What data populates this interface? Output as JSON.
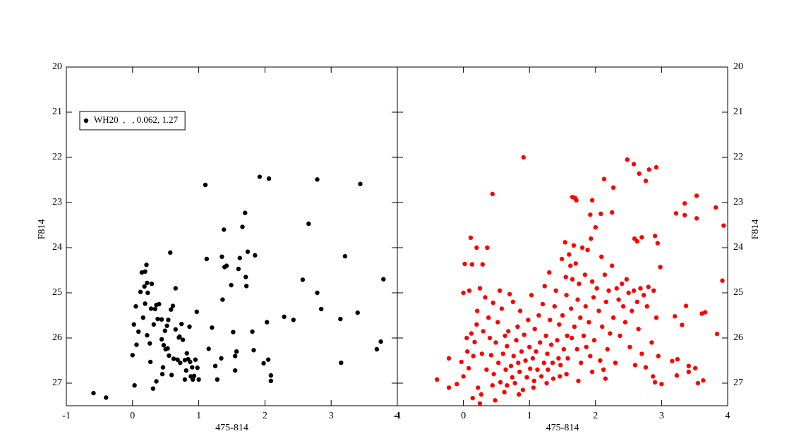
{
  "chart_data": [
    {
      "type": "scatter",
      "xlabel": "475-814",
      "ylabel": "F814",
      "xlim": [
        -1,
        4
      ],
      "ylim": [
        27.5,
        20
      ],
      "xticks": [
        -1,
        0,
        1,
        2,
        3,
        4
      ],
      "yticks": [
        20,
        21,
        22,
        23,
        24,
        25,
        26,
        27
      ],
      "yaxis_side": "left",
      "legend": "upper left",
      "series": [
        {
          "name": "WH20  ,   , 0.062, 1.27",
          "color": "#000000",
          "x": [
            -0.59,
            -0.4,
            0.0,
            0.03,
            0.02,
            0.05,
            0.06,
            0.12,
            0.14,
            0.19,
            0.09,
            0.16,
            0.18,
            0.19,
            0.21,
            0.22,
            0.23,
            0.22,
            0.26,
            0.27,
            0.28,
            0.29,
            0.32,
            0.34,
            0.36,
            0.38,
            0.4,
            0.44,
            0.44,
            0.46,
            0.47,
            0.49,
            0.52,
            0.54,
            0.53,
            0.55,
            0.57,
            0.58,
            0.59,
            0.61,
            0.62,
            0.65,
            0.65,
            0.68,
            0.7,
            0.71,
            0.74,
            0.76,
            0.79,
            0.81,
            0.82,
            0.84,
            0.87,
            0.88,
            0.9,
            0.91,
            0.93,
            0.95,
            0.98,
            1.0,
            0.97,
            1.1,
            1.12,
            1.2,
            1.15,
            1.25,
            1.28,
            1.34,
            1.36,
            1.38,
            1.39,
            1.42,
            1.35,
            1.49,
            1.52,
            1.55,
            1.55,
            1.57,
            1.6,
            1.62,
            1.66,
            1.7,
            1.71,
            1.72,
            1.74,
            1.81,
            1.83,
            1.85,
            1.92,
            2.03,
            2.05,
            2.06,
            2.09,
            2.09,
            1.98,
            2.29,
            2.43,
            2.57,
            2.66,
            2.79,
            2.79,
            2.85,
            3.14,
            3.15,
            3.21,
            3.4,
            3.44,
            3.69,
            3.75,
            3.79,
            0.72,
            0.79,
            0.45,
            0.36,
            0.31,
            0.5,
            0.86
          ],
          "values": [
            27.22,
            27.32,
            26.38,
            27.05,
            25.7,
            25.3,
            26.15,
            24.98,
            24.55,
            24.53,
            25.86,
            25.55,
            24.86,
            25.24,
            24.38,
            24.78,
            25.0,
            25.94,
            26.12,
            26.53,
            25.35,
            24.8,
            25.7,
            25.36,
            25.27,
            25.58,
            25.25,
            25.59,
            26.03,
            26.65,
            26.16,
            25.84,
            25.73,
            25.6,
            26.23,
            26.39,
            24.11,
            25.37,
            26.82,
            25.29,
            26.46,
            25.81,
            24.9,
            26.48,
            25.99,
            25.97,
            25.69,
            26.04,
            26.49,
            26.72,
            26.34,
            26.47,
            26.53,
            26.85,
            26.65,
            26.92,
            26.84,
            26.48,
            26.66,
            26.92,
            25.42,
            22.61,
            24.25,
            25.77,
            26.24,
            26.62,
            26.92,
            26.45,
            25.15,
            23.6,
            24.43,
            24.4,
            24.2,
            24.83,
            25.87,
            26.4,
            26.72,
            26.3,
            24.47,
            24.23,
            23.54,
            23.23,
            24.65,
            24.85,
            24.09,
            25.86,
            26.27,
            24.17,
            22.43,
            25.65,
            26.48,
            22.47,
            26.83,
            26.95,
            26.56,
            25.53,
            25.6,
            24.71,
            23.47,
            25.0,
            22.49,
            25.36,
            25.58,
            26.55,
            24.19,
            25.44,
            22.59,
            26.25,
            26.08,
            24.7,
            26.55,
            26.92,
            26.8,
            26.96,
            27.12,
            26.25,
            25.75
          ]
        }
      ]
    },
    {
      "type": "scatter",
      "xlabel": "475-814",
      "ylabel": "F814",
      "xlim": [
        -1,
        4
      ],
      "ylim": [
        27.5,
        20
      ],
      "xticks": [
        -1,
        0,
        1,
        2,
        3,
        4
      ],
      "yticks": [
        20,
        21,
        22,
        23,
        24,
        25,
        26,
        27
      ],
      "yaxis_side": "right",
      "series": [
        {
          "color": "#ff0000",
          "x": [
            0.91,
            0.44,
            2.48,
            2.58,
            2.66,
            2.81,
            2.92,
            2.76,
            1.65,
            1.69,
            1.71,
            1.95,
            2.13,
            2.27,
            2.25,
            2.08,
            1.92,
            3.22,
            3.35,
            3.35,
            3.53,
            3.53,
            3.82,
            3.94,
            2.9,
            2.94,
            2.59,
            2.7,
            2.63,
            2.98,
            0.11,
            0.2,
            0.02,
            0.13,
            0.29,
            0.36,
            0.09,
            0.0,
            0.25,
            3.92,
            3.37,
            3.61,
            3.66,
            3.2,
            3.31,
            3.84,
            3.24,
            3.41,
            3.41,
            3.51,
            3.23,
            3.0,
            3.55,
            3.63,
            2.87,
            2.9,
            3.16,
            -0.4,
            -0.22,
            -0.22,
            -0.1,
            -0.03,
            0.0,
            0.05,
            0.06,
            0.08,
            0.12,
            0.14,
            0.15,
            0.17,
            0.2,
            0.21,
            0.22,
            0.25,
            0.27,
            0.28,
            0.3,
            0.33,
            0.35,
            0.38,
            0.4,
            0.42,
            0.44,
            0.45,
            0.46,
            0.48,
            0.49,
            0.52,
            0.53,
            0.55,
            0.56,
            0.58,
            0.6,
            0.62,
            0.63,
            0.64,
            0.66,
            0.68,
            0.7,
            0.72,
            0.74,
            0.75,
            0.76,
            0.78,
            0.8,
            0.82,
            0.83,
            0.85,
            0.86,
            0.88,
            0.9,
            0.92,
            0.94,
            0.96,
            0.98,
            1.0,
            1.01,
            1.03,
            1.05,
            1.07,
            1.08,
            1.1,
            1.12,
            1.14,
            1.16,
            1.18,
            1.2,
            1.22,
            1.23,
            1.25,
            1.27,
            1.28,
            1.3,
            1.31,
            1.33,
            1.35,
            1.36,
            1.38,
            1.4,
            1.42,
            1.44,
            1.45,
            1.47,
            1.49,
            1.5,
            1.52,
            1.54,
            1.55,
            1.56,
            1.57,
            1.58,
            1.6,
            1.62,
            1.63,
            1.64,
            1.65,
            1.67,
            1.68,
            1.7,
            1.72,
            1.73,
            1.75,
            1.77,
            1.78,
            1.8,
            1.82,
            1.84,
            1.85,
            1.86,
            1.88,
            1.9,
            1.92,
            1.93,
            1.95,
            1.97,
            1.98,
            2.0,
            2.02,
            2.05,
            2.07,
            2.09,
            2.1,
            2.12,
            2.14,
            2.16,
            2.18,
            2.2,
            2.22,
            2.25,
            2.27,
            2.3,
            2.32,
            2.35,
            2.37,
            2.4,
            2.42,
            2.45,
            2.47,
            2.5,
            2.52,
            2.55,
            2.58,
            2.6,
            2.63,
            2.65,
            2.68,
            2.7,
            2.73,
            2.76,
            2.78,
            2.8,
            2.85,
            2.88,
            2.92,
            2.95,
            1.46,
            1.26,
            1.06,
            0.84,
            0.66,
            1.56,
            1.74,
            1.95,
            2.15
          ],
          "values": [
            22.0,
            22.81,
            22.05,
            22.15,
            22.36,
            22.27,
            22.22,
            22.52,
            22.88,
            22.9,
            22.95,
            22.95,
            22.48,
            22.67,
            23.22,
            23.25,
            23.27,
            23.24,
            23.02,
            23.28,
            22.85,
            23.35,
            23.11,
            23.51,
            23.74,
            23.9,
            23.8,
            23.77,
            23.86,
            24.43,
            23.78,
            24.0,
            24.36,
            24.37,
            24.37,
            24.0,
            24.95,
            25.0,
            24.9,
            24.73,
            25.29,
            25.46,
            25.43,
            25.52,
            25.71,
            25.91,
            26.47,
            26.62,
            26.75,
            26.67,
            26.83,
            27.02,
            27.0,
            26.94,
            26.85,
            26.98,
            26.51,
            26.92,
            26.45,
            27.1,
            27.02,
            26.53,
            26.85,
            26.0,
            26.3,
            26.67,
            25.9,
            27.33,
            26.4,
            26.09,
            25.7,
            25.4,
            27.1,
            27.45,
            27.25,
            26.35,
            25.85,
            25.1,
            26.7,
            25.55,
            26.0,
            26.38,
            27.05,
            25.22,
            26.8,
            27.38,
            26.1,
            25.65,
            26.55,
            24.95,
            26.98,
            25.35,
            26.35,
            27.2,
            25.95,
            26.7,
            26.18,
            25.85,
            25.03,
            26.62,
            26.87,
            25.2,
            26.4,
            27.0,
            26.05,
            25.75,
            26.55,
            26.75,
            25.4,
            26.3,
            27.15,
            25.93,
            26.5,
            26.87,
            25.6,
            26.2,
            26.68,
            25.05,
            26.45,
            26.95,
            25.8,
            26.3,
            26.7,
            25.5,
            26.1,
            26.85,
            25.25,
            26.55,
            24.85,
            25.95,
            26.35,
            26.7,
            24.55,
            25.6,
            26.15,
            26.55,
            26.9,
            25.3,
            24.95,
            26.05,
            26.45,
            25.7,
            26.6,
            24.25,
            25.5,
            26.25,
            23.88,
            24.65,
            25.05,
            25.95,
            26.45,
            24.15,
            24.4,
            25.35,
            26.0,
            24.7,
            23.95,
            25.75,
            24.35,
            26.25,
            25.15,
            24.8,
            25.55,
            26.55,
            24.0,
            25.95,
            24.6,
            25.3,
            26.2,
            24.05,
            25.65,
            26.4,
            23.8,
            24.75,
            25.1,
            26.05,
            23.55,
            24.9,
            25.4,
            26.5,
            24.2,
            25.75,
            26.7,
            24.6,
            25.2,
            26.25,
            24.95,
            25.9,
            24.4,
            25.55,
            26.55,
            24.9,
            25.15,
            25.95,
            24.8,
            25.3,
            25.65,
            24.7,
            25.0,
            26.2,
            25.4,
            24.95,
            26.6,
            25.2,
            25.8,
            24.9,
            26.35,
            25.05,
            26.65,
            25.3,
            24.87,
            26.1,
            24.95,
            25.55,
            26.4,
            26.85,
            27.0,
            27.1,
            27.25,
            27.05,
            26.8,
            26.95,
            26.75,
            26.9
          ]
        }
      ]
    }
  ]
}
